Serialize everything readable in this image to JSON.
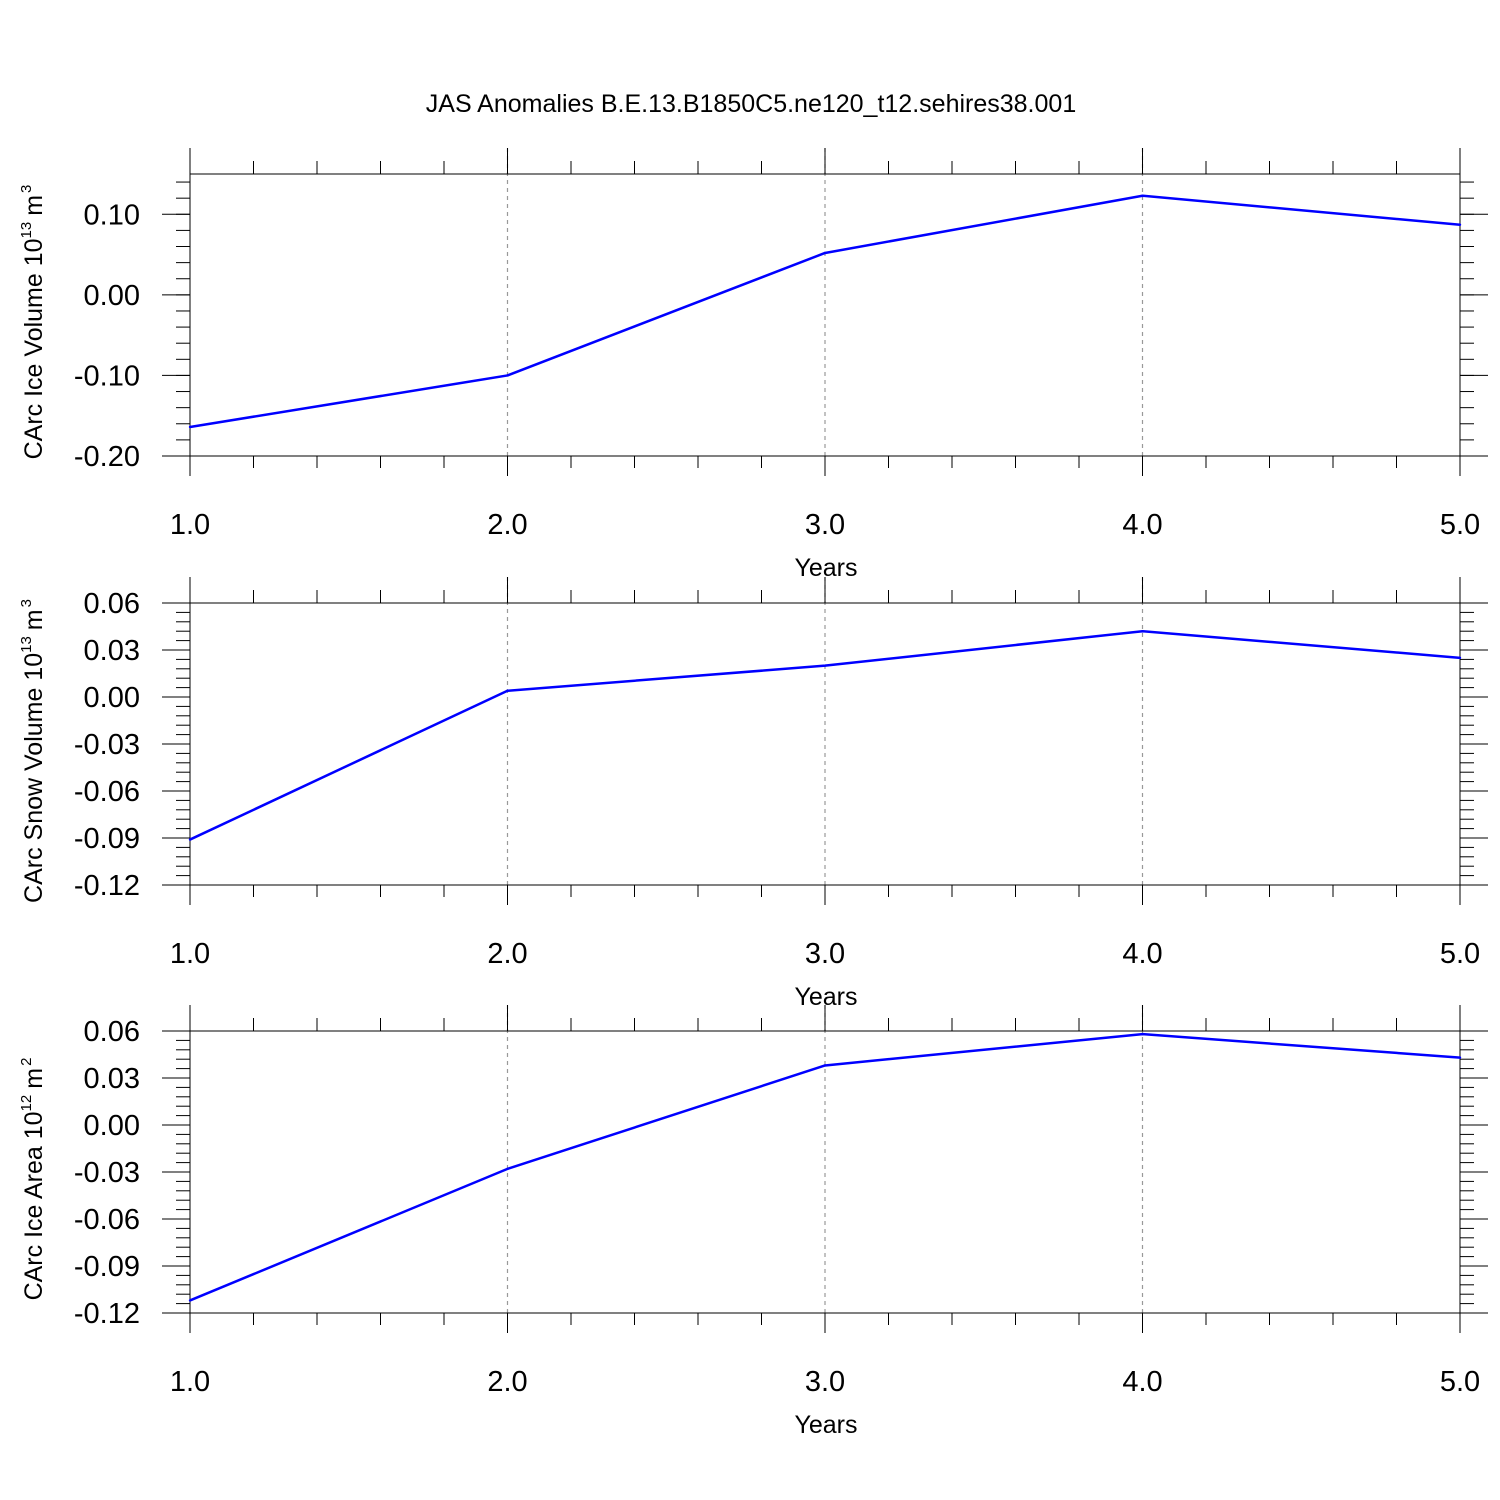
{
  "figure": {
    "title": "JAS Anomalies B.E.13.B1850C5.ne120_t12.sehires38.001",
    "line_color": "#0000ff",
    "grid_color": "#999999"
  },
  "chart_data": [
    {
      "type": "line",
      "id": "ice-volume",
      "xlabel": "Years",
      "ylabel": {
        "text": "CArc Ice Volume 10",
        "exponent": "13",
        "unit": "m",
        "unit_exponent": "3"
      },
      "xlim": [
        1.0,
        5.0
      ],
      "ylim": [
        -0.2,
        0.15
      ],
      "xticks": [
        1.0,
        2.0,
        3.0,
        4.0,
        5.0
      ],
      "xtick_labels": [
        "1.0",
        "2.0",
        "3.0",
        "4.0",
        "5.0"
      ],
      "yticks": [
        -0.2,
        -0.1,
        0.0,
        0.1
      ],
      "ytick_labels": [
        "-0.20",
        "-0.10",
        "0.00",
        "0.10"
      ],
      "grid": "x-dashed",
      "x": [
        1.0,
        2.0,
        3.0,
        4.0,
        5.0
      ],
      "y": [
        -0.164,
        -0.1,
        0.052,
        0.123,
        0.087
      ]
    },
    {
      "type": "line",
      "id": "snow-volume",
      "xlabel": "Years",
      "ylabel": {
        "text": "CArc Snow Volume 10",
        "exponent": "13",
        "unit": "m",
        "unit_exponent": "3"
      },
      "xlim": [
        1.0,
        5.0
      ],
      "ylim": [
        -0.12,
        0.06
      ],
      "xticks": [
        1.0,
        2.0,
        3.0,
        4.0,
        5.0
      ],
      "xtick_labels": [
        "1.0",
        "2.0",
        "3.0",
        "4.0",
        "5.0"
      ],
      "yticks": [
        -0.12,
        -0.09,
        -0.06,
        -0.03,
        0.0,
        0.03,
        0.06
      ],
      "ytick_labels": [
        "-0.12",
        "-0.09",
        "-0.06",
        "-0.03",
        "0.00",
        "0.03",
        "0.06"
      ],
      "grid": "x-dashed",
      "x": [
        1.0,
        2.0,
        3.0,
        4.0,
        5.0
      ],
      "y": [
        -0.091,
        0.004,
        0.02,
        0.042,
        0.025
      ]
    },
    {
      "type": "line",
      "id": "ice-area",
      "xlabel": "Years",
      "ylabel": {
        "text": "CArc Ice Area 10",
        "exponent": "12",
        "unit": "m",
        "unit_exponent": "2"
      },
      "xlim": [
        1.0,
        5.0
      ],
      "ylim": [
        -0.12,
        0.06
      ],
      "xticks": [
        1.0,
        2.0,
        3.0,
        4.0,
        5.0
      ],
      "xtick_labels": [
        "1.0",
        "2.0",
        "3.0",
        "4.0",
        "5.0"
      ],
      "yticks": [
        -0.12,
        -0.09,
        -0.06,
        -0.03,
        0.0,
        0.03,
        0.06
      ],
      "ytick_labels": [
        "-0.12",
        "-0.09",
        "-0.06",
        "-0.03",
        "0.00",
        "0.03",
        "0.06"
      ],
      "grid": "x-dashed",
      "x": [
        1.0,
        2.0,
        3.0,
        4.0,
        5.0
      ],
      "y": [
        -0.112,
        -0.028,
        0.038,
        0.058,
        0.043
      ]
    }
  ]
}
